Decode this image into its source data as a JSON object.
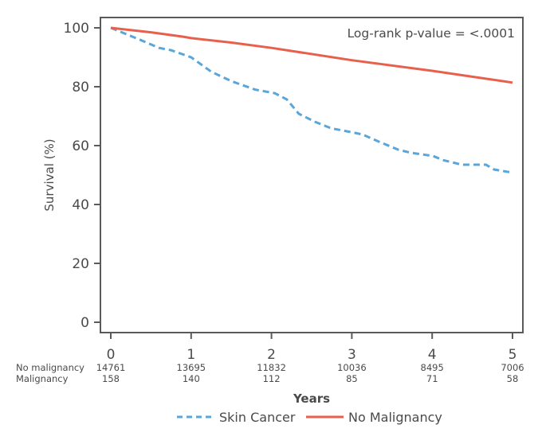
{
  "chart_data": {
    "type": "line",
    "title": "",
    "xlabel": "Years",
    "ylabel": "Survival (%)",
    "xlim": [
      0,
      5
    ],
    "ylim": [
      0,
      100
    ],
    "x_ticks": [
      0,
      1,
      2,
      3,
      4,
      5
    ],
    "y_ticks": [
      0,
      20,
      40,
      60,
      80,
      100
    ],
    "grid": false,
    "annotation": "Log-rank p-value = <.0001",
    "legend_position": "bottom",
    "series": [
      {
        "name": "Skin Cancer",
        "color": "#5aa5da",
        "style": "dashed",
        "points": [
          [
            0,
            100
          ],
          [
            0.36,
            96
          ],
          [
            0.6,
            93.2
          ],
          [
            0.75,
            92.4
          ],
          [
            1.0,
            90
          ],
          [
            1.25,
            85.1
          ],
          [
            1.5,
            81.9
          ],
          [
            1.8,
            79
          ],
          [
            2.04,
            77.8
          ],
          [
            2.19,
            75.7
          ],
          [
            2.34,
            70.8
          ],
          [
            2.54,
            68.1
          ],
          [
            2.74,
            65.9
          ],
          [
            2.99,
            64.6
          ],
          [
            3.13,
            63.8
          ],
          [
            3.33,
            61.4
          ],
          [
            3.58,
            58.6
          ],
          [
            3.73,
            57.6
          ],
          [
            4.01,
            56.5
          ],
          [
            4.13,
            55.1
          ],
          [
            4.37,
            53.5
          ],
          [
            4.67,
            53.5
          ],
          [
            4.77,
            51.9
          ],
          [
            5.0,
            50.8
          ]
        ]
      },
      {
        "name": "No Malignancy",
        "color": "#e8604c",
        "style": "solid",
        "points": [
          [
            0,
            100
          ],
          [
            0.5,
            98.5
          ],
          [
            0.9,
            97
          ],
          [
            1.0,
            96.5
          ],
          [
            1.5,
            95
          ],
          [
            2.0,
            93.2
          ],
          [
            3.0,
            89
          ],
          [
            4.0,
            85.4
          ],
          [
            5.0,
            81.4
          ]
        ]
      }
    ],
    "risk_table": {
      "rows": [
        {
          "label": "No malignancy",
          "values": [
            "14761",
            "13695",
            "11832",
            "10036",
            "8495",
            "7006"
          ]
        },
        {
          "label": "Malignancy",
          "values": [
            "158",
            "140",
            "112",
            "85",
            "71",
            "58"
          ]
        }
      ]
    }
  }
}
